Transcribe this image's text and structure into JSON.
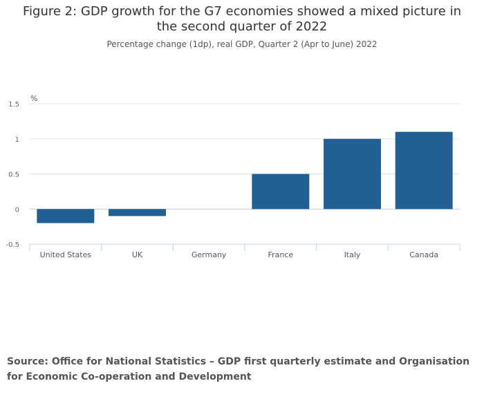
{
  "chart_data": {
    "type": "bar",
    "title": "Figure 2: GDP growth for the G7 economies showed a mixed picture in the second quarter of 2022",
    "subtitle": "Percentage change (1dp), real GDP, Quarter 2 (Apr to June) 2022",
    "ylabel": "%",
    "xlabel": "",
    "categories": [
      "United States",
      "UK",
      "Germany",
      "France",
      "Italy",
      "Canada"
    ],
    "values": [
      -0.2,
      -0.1,
      0.0,
      0.5,
      1.0,
      1.1
    ],
    "ylim": [
      -0.5,
      1.5
    ],
    "yticks": [
      -0.5,
      0,
      0.5,
      1,
      1.5
    ],
    "ytick_labels": [
      "-0.5",
      "0",
      "0.5",
      "1",
      "1.5"
    ],
    "grid": true,
    "bar_color": "#206095"
  },
  "source": "Source: Office for National Statistics – GDP first quarterly estimate and Organisation for Economic Co-operation and Development"
}
